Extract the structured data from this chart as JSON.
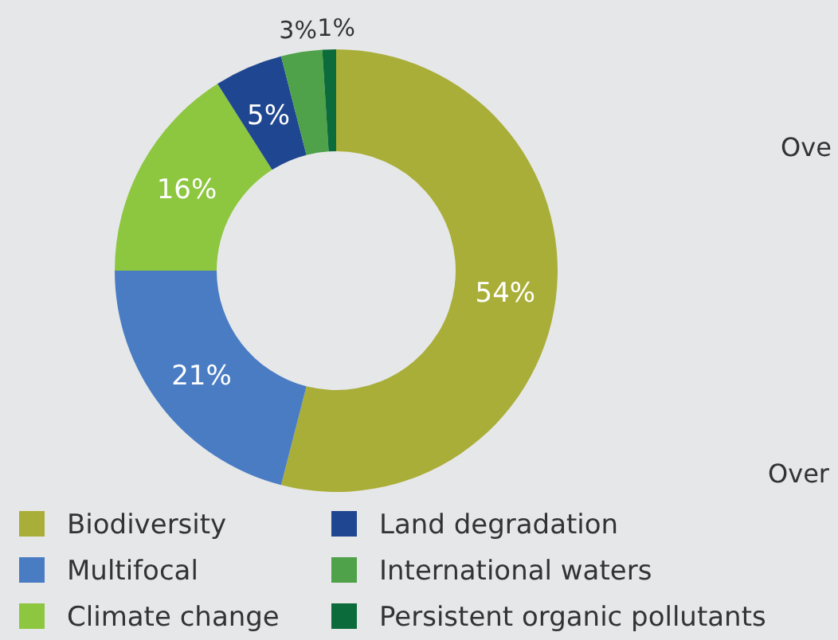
{
  "chart_data": {
    "type": "donut",
    "categories": [
      "Biodiversity",
      "Multifocal",
      "Climate change",
      "Land degradation",
      "International waters",
      "Persistent organic pollutants"
    ],
    "values": [
      54,
      21,
      16,
      5,
      3,
      1
    ],
    "colors": [
      "#a9ae38",
      "#4a7cc4",
      "#8dc63f",
      "#1f4690",
      "#4fa14a",
      "#0c6b3a"
    ],
    "value_labels": [
      "54%",
      "21%",
      "16%",
      "5%",
      "3%",
      "1%"
    ],
    "legend": "bottom",
    "annotations": [
      "Ove",
      "Over"
    ]
  }
}
